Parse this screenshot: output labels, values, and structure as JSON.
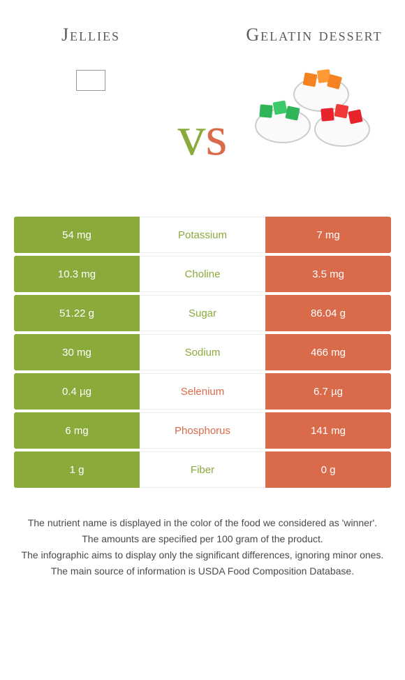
{
  "header": {
    "left_title": "Jellies",
    "right_title": "Gelatin dessert",
    "vs_v": "v",
    "vs_s": "s"
  },
  "colors": {
    "left": "#8aaa3b",
    "right": "#d96a4a",
    "text": "#4a4a4a"
  },
  "rows": [
    {
      "left": "54 mg",
      "label": "Potassium",
      "right": "7 mg",
      "winner": "left"
    },
    {
      "left": "10.3 mg",
      "label": "Choline",
      "right": "3.5 mg",
      "winner": "left"
    },
    {
      "left": "51.22 g",
      "label": "Sugar",
      "right": "86.04 g",
      "winner": "left"
    },
    {
      "left": "30 mg",
      "label": "Sodium",
      "right": "466 mg",
      "winner": "left"
    },
    {
      "left": "0.4 µg",
      "label": "Selenium",
      "right": "6.7 µg",
      "winner": "right"
    },
    {
      "left": "6 mg",
      "label": "Phosphorus",
      "right": "141 mg",
      "winner": "right"
    },
    {
      "left": "1 g",
      "label": "Fiber",
      "right": "0 g",
      "winner": "left"
    }
  ],
  "footer": {
    "line1": "The nutrient name is displayed in the color of the food we considered as 'winner'.",
    "line2": "The amounts are specified per 100 gram of the product.",
    "line3": "The infographic aims to display only the significant differences, ignoring minor ones.",
    "line4": "The main source of information is USDA Food Composition Database."
  }
}
